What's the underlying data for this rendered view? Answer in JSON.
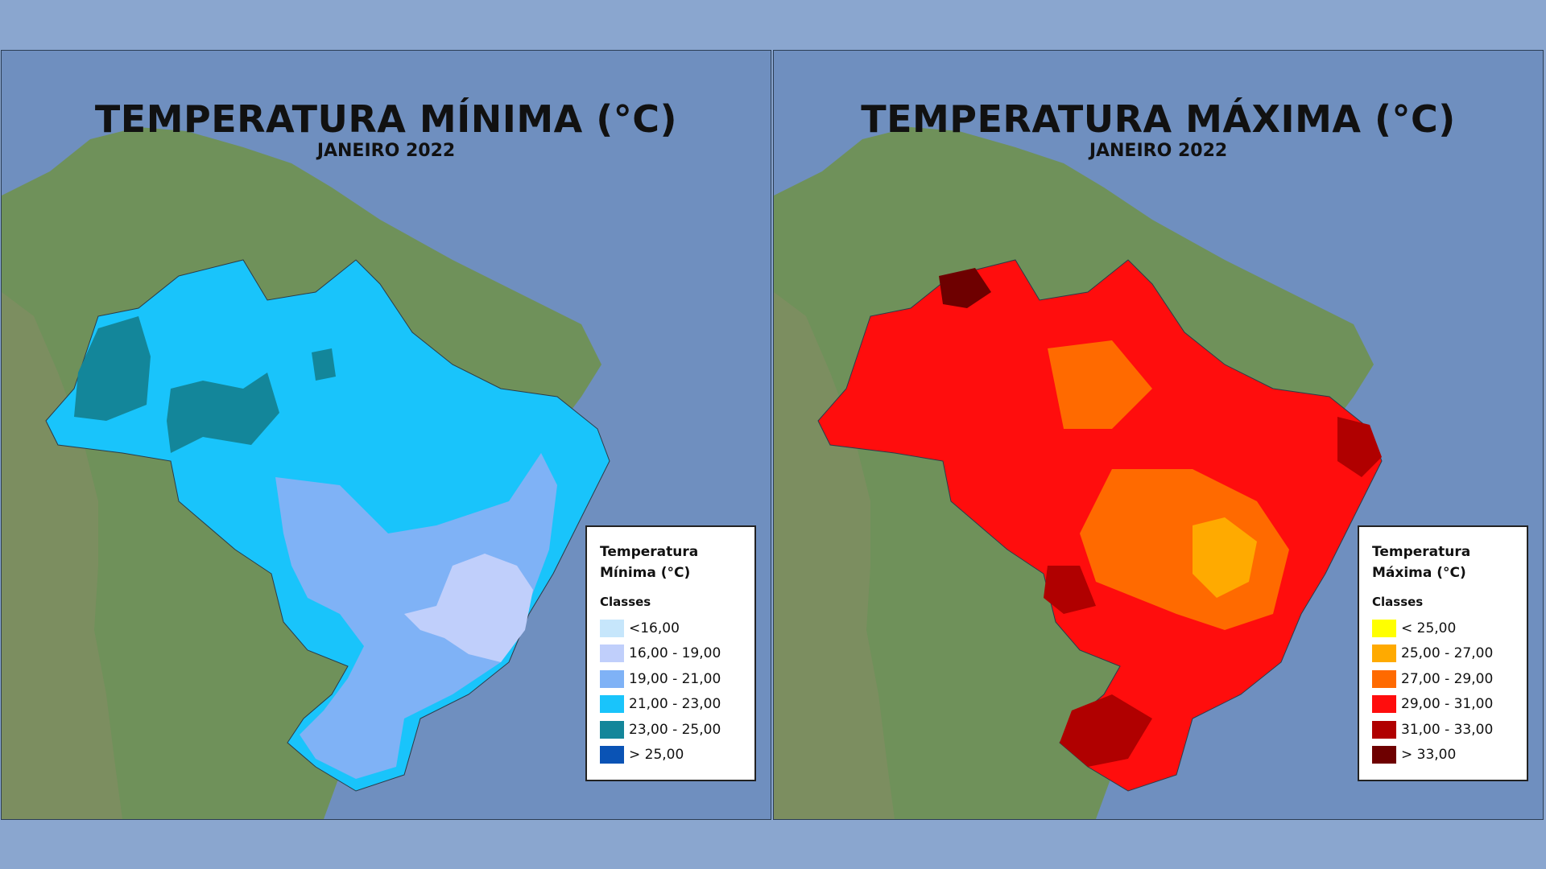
{
  "maps": [
    {
      "title": "TEMPERATURA MÍNIMA (°C)",
      "subtitle": "JANEIRO 2022",
      "legend": {
        "title_line1": "Temperatura",
        "title_line2": "Mínima (°C)",
        "classes_label": "Classes",
        "items": [
          {
            "label": "<16,00",
            "color": "#c6e6fb"
          },
          {
            "label": "16,00 - 19,00",
            "color": "#c0cffb"
          },
          {
            "label": "19,00 - 21,00",
            "color": "#7fb2f6"
          },
          {
            "label": "21,00 - 23,00",
            "color": "#19c4fb"
          },
          {
            "label": "23,00 - 25,00",
            "color": "#13869a"
          },
          {
            "label": "> 25,00",
            "color": "#0a53b5"
          }
        ]
      }
    },
    {
      "title": "TEMPERATURA MÁXIMA (°C)",
      "subtitle": "JANEIRO 2022",
      "legend": {
        "title_line1": "Temperatura",
        "title_line2": "Máxima (°C)",
        "classes_label": "Classes",
        "items": [
          {
            "label": "< 25,00",
            "color": "#ffff00"
          },
          {
            "label": "25,00 - 27,00",
            "color": "#ffaa00"
          },
          {
            "label": "27,00 - 29,00",
            "color": "#ff6a00"
          },
          {
            "label": "29,00 - 31,00",
            "color": "#ff0d0d"
          },
          {
            "label": "31,00 - 33,00",
            "color": "#b00000"
          },
          {
            "label": "> 33,00",
            "color": "#6e0000"
          }
        ]
      }
    }
  ]
}
